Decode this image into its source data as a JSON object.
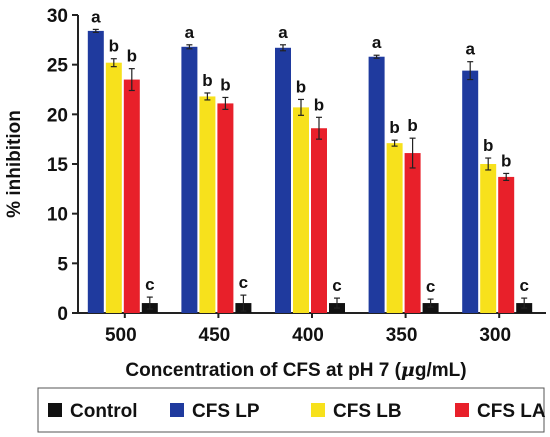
{
  "chart_data": {
    "type": "bar",
    "xlabel_parts": [
      "Concentration of CFS at pH 7 (",
      "μ",
      "g/mL)"
    ],
    "ylabel": "% inhibition",
    "ylim": [
      0,
      30
    ],
    "yticks": [
      0,
      5,
      10,
      15,
      20,
      25,
      30
    ],
    "categories": [
      "500",
      "450",
      "400",
      "350",
      "300"
    ],
    "legend": {
      "position": "bottom"
    },
    "series": [
      {
        "name": "CFS LP",
        "color": "#1f3a9e",
        "values": [
          28.4,
          26.8,
          26.7,
          25.8,
          24.4
        ],
        "errors": [
          0.15,
          0.2,
          0.3,
          0.15,
          0.9
        ],
        "labels": [
          "a",
          "a",
          "a",
          "a",
          "a"
        ]
      },
      {
        "name": "CFS LB",
        "color": "#f7e11c",
        "values": [
          25.2,
          21.8,
          20.7,
          17.1,
          15.0
        ],
        "errors": [
          0.4,
          0.35,
          0.8,
          0.3,
          0.6
        ],
        "labels": [
          "b",
          "b",
          "b",
          "b",
          "b"
        ]
      },
      {
        "name": "CFS LA",
        "color": "#e8202a",
        "values": [
          23.5,
          21.1,
          18.6,
          16.1,
          13.7
        ],
        "errors": [
          1.1,
          0.6,
          1.1,
          1.5,
          0.35
        ],
        "labels": [
          "b",
          "b",
          "b",
          "b",
          "b"
        ]
      },
      {
        "name": "Control",
        "color": "#111111",
        "values": [
          1.0,
          1.0,
          1.0,
          1.0,
          1.0
        ],
        "errors": [
          0.6,
          0.8,
          0.5,
          0.4,
          0.5
        ],
        "labels": [
          "c",
          "c",
          "c",
          "c",
          "c"
        ]
      }
    ],
    "legend_order": [
      "Control",
      "CFS LP",
      "CFS LB",
      "CFS LA"
    ]
  }
}
